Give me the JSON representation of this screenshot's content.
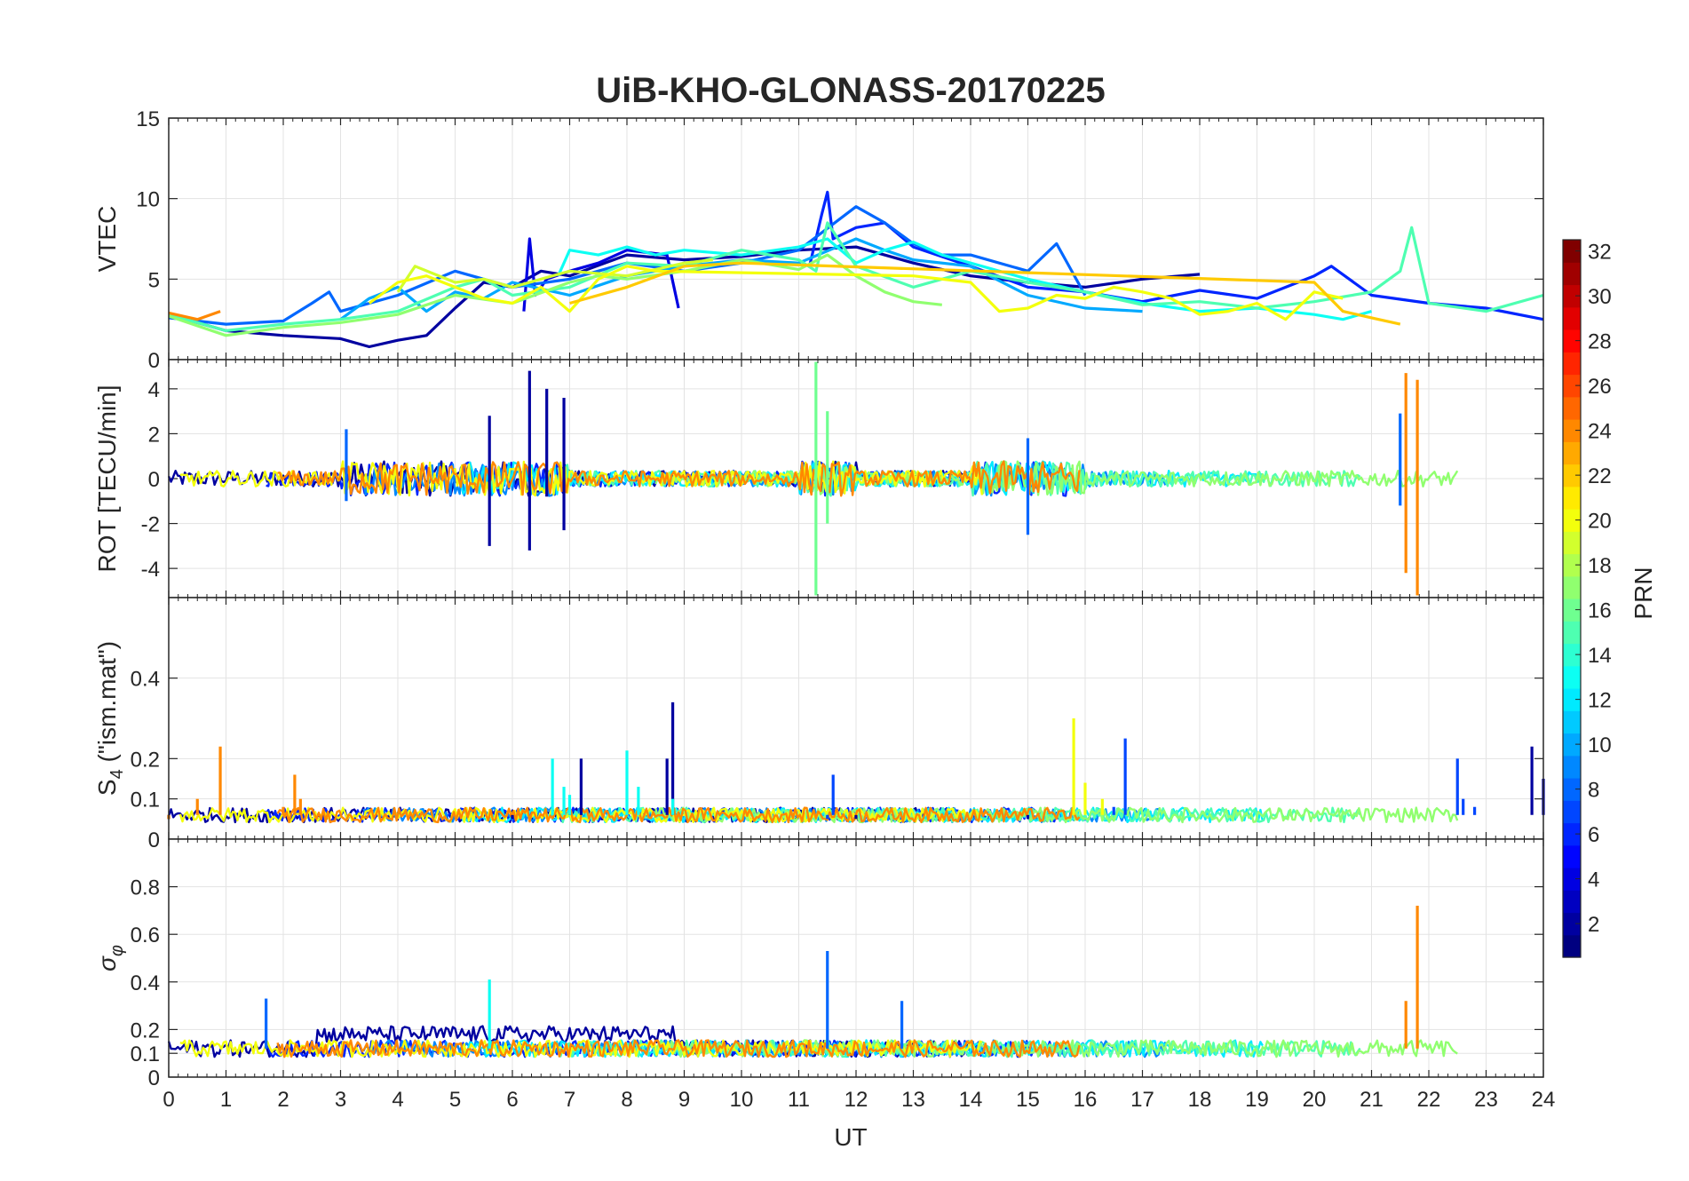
{
  "chart_data": {
    "title": "UiB-KHO-GLONASS-20170225",
    "type": "line",
    "x_axis": {
      "label": "UT",
      "range": [
        0,
        24
      ],
      "ticks": [
        "0",
        "1",
        "2",
        "3",
        "4",
        "5",
        "6",
        "7",
        "8",
        "9",
        "10",
        "11",
        "12",
        "13",
        "14",
        "15",
        "16",
        "17",
        "18",
        "19",
        "20",
        "21",
        "22",
        "23",
        "24"
      ]
    },
    "grid": true,
    "panels": [
      {
        "ylabel": "VTEC",
        "ylim": [
          0,
          15
        ],
        "yticks": [
          "0",
          "5",
          "10",
          "15"
        ],
        "series": [
          {
            "prn": 2,
            "x": [
              0,
              1,
              2,
              3,
              3.5,
              4,
              4.5,
              5,
              5.5,
              6,
              6.5,
              7,
              8,
              9,
              10,
              11,
              12,
              13,
              14,
              15,
              16,
              17,
              18
            ],
            "y": [
              2.8,
              1.8,
              1.5,
              1.3,
              0.8,
              1.2,
              1.5,
              3.2,
              4.8,
              4.5,
              5.5,
              5.2,
              6.5,
              6.2,
              6.4,
              6.8,
              7.0,
              6.0,
              5.2,
              4.8,
              4.5,
              5.0,
              5.3
            ]
          },
          {
            "prn": 4,
            "x": [
              6.2,
              6.3,
              6.4,
              6.6,
              7,
              7.5,
              8,
              8.7,
              8.9
            ],
            "y": [
              3.0,
              7.5,
              4.0,
              5.0,
              5.5,
              6.0,
              6.8,
              6.5,
              3.2
            ]
          },
          {
            "prn": 6,
            "x": [
              11.2,
              11.4,
              11.5,
              11.6,
              12,
              12.5,
              13,
              14,
              15,
              16,
              17,
              18,
              19,
              20,
              20.3,
              21,
              22,
              23,
              24
            ],
            "y": [
              6.0,
              9.0,
              10.4,
              7.5,
              8.2,
              8.5,
              7.0,
              5.8,
              4.5,
              4.2,
              3.6,
              4.3,
              3.8,
              5.2,
              5.8,
              4.0,
              3.5,
              3.2,
              2.5
            ]
          },
          {
            "prn": 8,
            "x": [
              0,
              1,
              2,
              2.5,
              2.8,
              3,
              4,
              5,
              6,
              7,
              8,
              9,
              10,
              11,
              12,
              12.5,
              13,
              13.5,
              14,
              15,
              15.5,
              16
            ],
            "y": [
              2.6,
              2.2,
              2.4,
              3.5,
              4.2,
              3.0,
              4.0,
              5.5,
              4.5,
              5.0,
              6.0,
              5.5,
              6.0,
              6.8,
              9.5,
              8.5,
              7.2,
              6.5,
              6.5,
              5.5,
              7.2,
              4.0
            ]
          },
          {
            "prn": 10,
            "x": [
              3,
              3.5,
              4,
              4.5,
              5,
              5.5,
              6,
              7,
              8,
              9,
              10,
              11,
              12,
              12.5,
              13,
              14,
              15,
              16,
              17
            ],
            "y": [
              2.5,
              3.8,
              4.5,
              3.0,
              4.2,
              3.8,
              4.8,
              4.0,
              5.2,
              5.8,
              6.2,
              6.0,
              7.5,
              6.8,
              6.2,
              5.8,
              4.0,
              3.2,
              3.0
            ]
          },
          {
            "prn": 13,
            "x": [
              6.8,
              7,
              7.5,
              8,
              8.5,
              9,
              10,
              11,
              11.5,
              12,
              12.5,
              13,
              13.5,
              14,
              15,
              16,
              17,
              18,
              19,
              20,
              20.5,
              21
            ],
            "y": [
              5.2,
              6.8,
              6.5,
              7.0,
              6.5,
              6.8,
              6.5,
              7.0,
              7.5,
              6.0,
              6.8,
              7.3,
              6.5,
              6.0,
              5.0,
              4.2,
              3.5,
              3.0,
              3.2,
              2.8,
              2.5,
              3.0
            ]
          },
          {
            "prn": 15,
            "x": [
              0,
              1,
              2,
              3,
              4,
              5,
              5.5,
              6,
              7,
              8,
              9,
              10,
              11,
              11.3,
              11.5,
              12,
              13,
              14,
              15,
              16,
              17,
              18,
              19,
              20,
              21,
              21.5,
              21.7,
              22,
              23,
              24
            ],
            "y": [
              2.8,
              1.8,
              2.2,
              2.5,
              3.0,
              4.5,
              5.0,
              4.0,
              4.5,
              6.0,
              5.8,
              6.8,
              6.2,
              5.5,
              8.5,
              5.8,
              4.5,
              5.5,
              4.8,
              4.2,
              3.4,
              3.6,
              3.2,
              3.6,
              4.2,
              5.5,
              8.2,
              3.5,
              3.0,
              4.0
            ]
          },
          {
            "prn": 17,
            "x": [
              0,
              1,
              2,
              3,
              4,
              5,
              6,
              7,
              7.5,
              8,
              9,
              10,
              11,
              11.5,
              12,
              12.5,
              13,
              13.5
            ],
            "y": [
              2.7,
              1.5,
              2.0,
              2.3,
              2.8,
              4.0,
              3.5,
              4.8,
              5.2,
              5.0,
              5.5,
              6.2,
              5.6,
              6.5,
              5.2,
              4.2,
              3.6,
              3.4
            ]
          },
          {
            "prn": 19,
            "x": [
              4,
              4.3,
              5,
              5.5,
              6,
              7,
              8,
              9,
              9.5
            ],
            "y": [
              4.2,
              5.8,
              4.8,
              5.0,
              4.5,
              5.5,
              5.2,
              6.0,
              6.2
            ]
          },
          {
            "prn": 20,
            "x": [
              3.5,
              4,
              4.5,
              5,
              5.5,
              6,
              6.5,
              7,
              7.5,
              8,
              8.5,
              13,
              14,
              14.5,
              15,
              15.5,
              16,
              16.5,
              17,
              17.5,
              18,
              18.5,
              19,
              19.5,
              20,
              20.5
            ],
            "y": [
              3.5,
              4.8,
              5.2,
              4.5,
              3.8,
              3.5,
              4.5,
              3.0,
              5.0,
              5.8,
              5.5,
              5.2,
              4.8,
              3.0,
              3.2,
              4.0,
              3.8,
              4.5,
              4.2,
              3.8,
              2.8,
              3.0,
              3.5,
              2.5,
              4.2,
              3.8
            ]
          },
          {
            "prn": 22,
            "x": [
              7,
              8,
              9,
              10,
              20,
              20.5,
              21,
              21.5
            ],
            "y": [
              3.5,
              4.5,
              5.8,
              6.0,
              4.8,
              3.0,
              2.6,
              2.2
            ]
          },
          {
            "prn": 24,
            "x": [
              0,
              0.5,
              0.9
            ],
            "y": [
              2.9,
              2.5,
              3.0
            ]
          }
        ]
      },
      {
        "ylabel": "ROT [TECU/min]",
        "ylim": [
          -5.3,
          5.3
        ],
        "yticks": [
          "-4",
          "-2",
          "0",
          "2",
          "4"
        ],
        "series": [
          {
            "prn": 2,
            "x": [
              5.6,
              5.6,
              6.3,
              6.3,
              6.6,
              6.6,
              6.9,
              6.9
            ],
            "y": [
              2.8,
              -3.0,
              4.8,
              -3.2,
              4.0,
              -0.8,
              3.6,
              -2.3
            ]
          },
          {
            "prn": 8,
            "x": [
              3.1,
              3.1,
              15.0,
              15.0,
              21.5,
              21.5
            ],
            "y": [
              2.2,
              -1.0,
              1.8,
              -2.5,
              2.9,
              -1.2
            ]
          },
          {
            "prn": 16,
            "x": [
              11.3,
              11.3,
              11.5,
              11.5
            ],
            "y": [
              5.2,
              -5.2,
              3.0,
              -2.0
            ]
          },
          {
            "prn": 24,
            "x": [
              21.6,
              21.6,
              21.8,
              21.8
            ],
            "y": [
              4.7,
              -4.2,
              4.4,
              -5.2
            ]
          }
        ]
      },
      {
        "ylabel": "S4 (\"ism.mat\")",
        "ylabel_main": "S",
        "ylabel_sub": "4",
        "ylabel_rest": " (\"ism.mat\")",
        "ylim": [
          0,
          0.6
        ],
        "yticks": [
          "0",
          "0.1",
          "0.2",
          "0.4"
        ],
        "series": [
          {
            "prn": 2,
            "x": [
              0,
              3,
              6,
              7,
              7.2,
              8,
              8.7,
              8.8,
              9,
              12,
              15,
              18,
              20,
              22,
              23.8,
              24
            ],
            "y": [
              0.05,
              0.06,
              0.05,
              0.07,
              0.2,
              0.06,
              0.2,
              0.34,
              0.06,
              0.05,
              0.05,
              0.06,
              0.06,
              0.06,
              0.23,
              0.15
            ]
          },
          {
            "prn": 7,
            "x": [
              11.5,
              11.6,
              16.5,
              16.7,
              22.5,
              22.6,
              22.8
            ],
            "y": [
              0.05,
              0.16,
              0.08,
              0.25,
              0.2,
              0.1,
              0.08
            ]
          },
          {
            "prn": 13,
            "x": [
              8.0,
              8.2,
              8.8,
              6.7,
              6.9,
              7.0
            ],
            "y": [
              0.22,
              0.13,
              0.1,
              0.2,
              0.13,
              0.11
            ]
          },
          {
            "prn": 20,
            "x": [
              15.8,
              16.0,
              16.3
            ],
            "y": [
              0.3,
              0.14,
              0.1
            ]
          },
          {
            "prn": 24,
            "x": [
              0,
              0.5,
              0.9,
              2.0,
              2.2,
              2.3
            ],
            "y": [
              0.05,
              0.1,
              0.23,
              0.08,
              0.16,
              0.1
            ]
          }
        ]
      },
      {
        "ylabel": "σφ",
        "ylabel_main": "σ",
        "ylabel_sub": "φ",
        "ylim": [
          0,
          1.0
        ],
        "yticks": [
          "0",
          "0.1",
          "0.2",
          "0.4",
          "0.6",
          "0.8"
        ],
        "series": [
          {
            "prn": 8,
            "x": [
              1.7,
              11.5,
              12.8
            ],
            "y": [
              0.33,
              0.53,
              0.32
            ]
          },
          {
            "prn": 13,
            "x": [
              5.6
            ],
            "y": [
              0.41
            ]
          },
          {
            "prn": 24,
            "x": [
              21.6,
              21.8
            ],
            "y": [
              0.32,
              0.72
            ]
          }
        ]
      }
    ],
    "colorbar": {
      "label": "PRN",
      "colormap": "jet",
      "range": [
        1,
        32
      ],
      "ticks": [
        "2",
        "4",
        "6",
        "8",
        "10",
        "12",
        "14",
        "16",
        "18",
        "20",
        "22",
        "24",
        "26",
        "28",
        "30",
        "32"
      ]
    }
  }
}
